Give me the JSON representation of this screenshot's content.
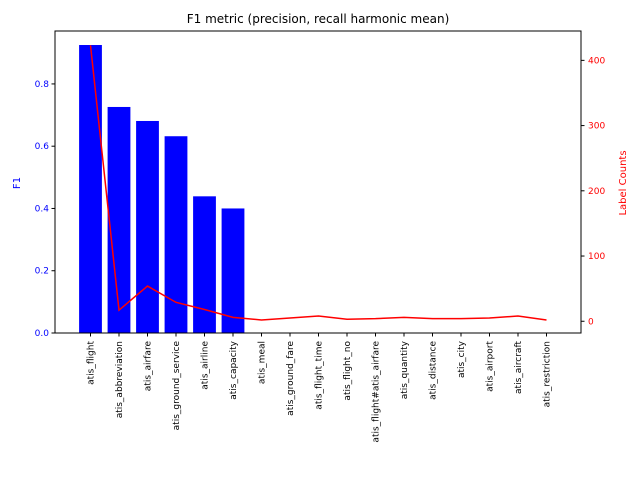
{
  "chart_data": {
    "type": "bar",
    "title": "F1 metric (precision, recall harmonic mean)",
    "xlabel": "",
    "ylabel": "F1",
    "y2label": "Label Counts",
    "categories": [
      "atis_flight",
      "atis_abbreviation",
      "atis_airfare",
      "atis_ground_service",
      "atis_airline",
      "atis_capacity",
      "atis_meal",
      "atis_ground_fare",
      "atis_flight_time",
      "atis_flight_no",
      "atis_flight#atis_airfare",
      "atis_quantity",
      "atis_distance",
      "atis_city",
      "atis_airport",
      "atis_aircraft",
      "atis_restriction"
    ],
    "series": [
      {
        "axis": "left",
        "kind": "bar",
        "color": "#0000ff",
        "values": [
          0.925,
          0.726,
          0.681,
          0.632,
          0.439,
          0.4,
          0,
          0,
          0,
          0,
          0,
          0,
          0,
          0,
          0,
          0,
          0
        ]
      },
      {
        "axis": "right",
        "kind": "line",
        "color": "#ff0000",
        "values": [
          423,
          17,
          54,
          29,
          18,
          6,
          2,
          5,
          8,
          3,
          4,
          6,
          4,
          4,
          5,
          8,
          2
        ]
      }
    ],
    "ylim": [
      0,
      0.97
    ],
    "yticks": [
      0.0,
      0.2,
      0.4,
      0.6,
      0.8
    ],
    "ytick_labels": [
      "0.0",
      "0.2",
      "0.4",
      "0.6",
      "0.8"
    ],
    "y2lim": [
      -18,
      445
    ],
    "y2ticks": [
      0,
      100,
      200,
      300,
      400
    ],
    "y2tick_labels": [
      "0",
      "100",
      "200",
      "300",
      "400"
    ],
    "grid": false,
    "colors": {
      "left_axis": "#0000ff",
      "right_axis": "#ff0000",
      "bar": "#0000ff",
      "line": "#ff0000"
    }
  }
}
